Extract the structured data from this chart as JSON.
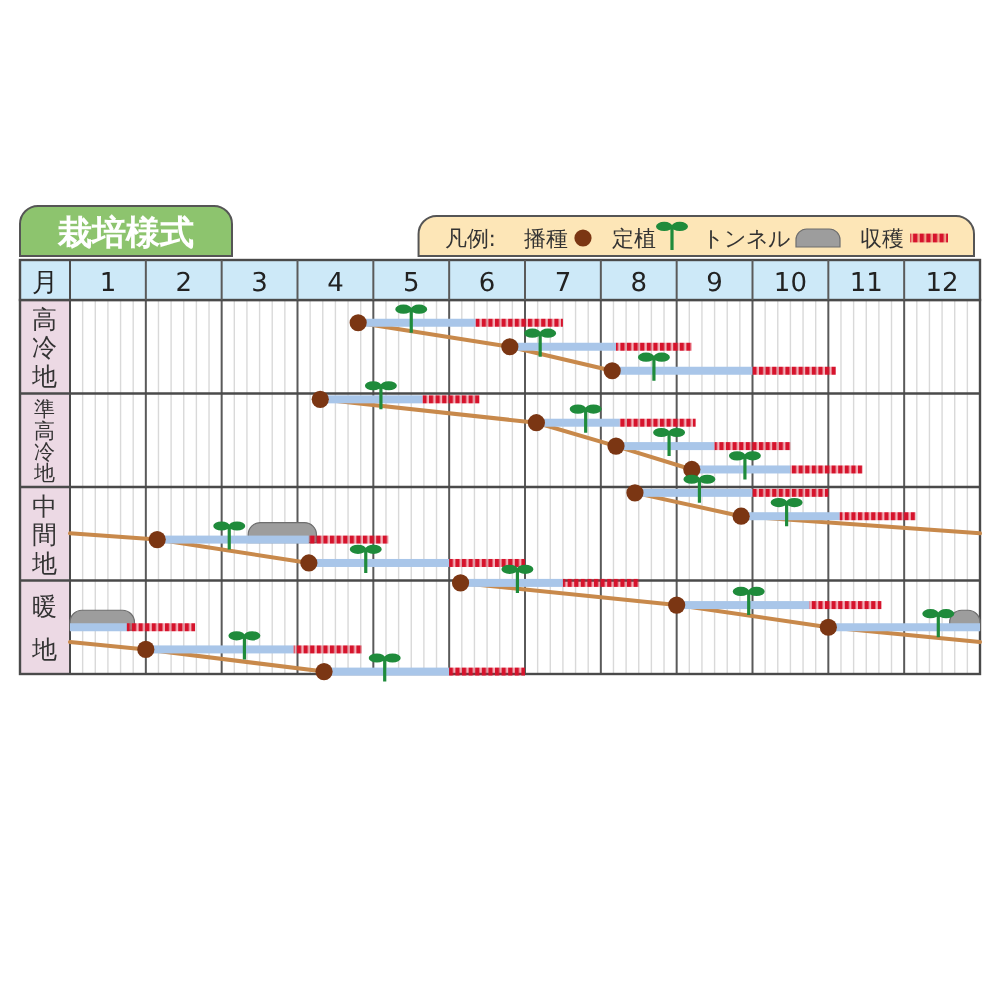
{
  "chart_data": {
    "type": "bar",
    "orientation": "horizontal",
    "title": "栽培様式",
    "xlabel": "月",
    "legend_title": "凡例:",
    "legend": "top right",
    "grid": true,
    "categories": [
      null,
      "高冷地",
      null,
      null,
      null,
      "準高冷地",
      null,
      null,
      null,
      "中間地",
      null,
      null,
      null,
      "暖地",
      null,
      null
    ],
    "xlim": [
      0.5,
      12.5
    ],
    "xticks": [
      1,
      2,
      3,
      4,
      5,
      6,
      7,
      8,
      9,
      10,
      11,
      12
    ],
    "series": [
      {
        "color": "#a9c6e9",
        "base": [
          4.3,
          6.3,
          7.65,
          3.8,
          6.65,
          7.7,
          8.7,
          7.95,
          9.35,
          1.65,
          3.65,
          5.65,
          8.5,
          10.5,
          1.5,
          3.85
        ],
        "values": [
          1.55,
          1.4,
          1.85,
          1.35,
          1.1,
          1.3,
          1.3,
          1.55,
          1.3,
          2.0,
          1.85,
          1.35,
          1.75,
          2.0,
          1.95,
          1.65
        ]
      },
      {
        "color": "#a9c6e9",
        "base": [
          null,
          null,
          null,
          null,
          null,
          null,
          null,
          null,
          null,
          null,
          null,
          null,
          null,
          0.5,
          null,
          null
        ],
        "values": [
          null,
          null,
          null,
          null,
          null,
          null,
          null,
          null,
          null,
          null,
          null,
          null,
          null,
          0.75,
          null,
          null
        ]
      },
      {
        "type": "line",
        "color": "#c8894b",
        "values": [
          4.3,
          6.3,
          7.65,
          null,
          null,
          null,
          null,
          null,
          null,
          null,
          null,
          null,
          null,
          null,
          null,
          null
        ]
      },
      {
        "type": "line",
        "color": "#c8894b",
        "values": [
          null,
          null,
          null,
          3.8,
          6.65,
          7.7,
          8.7,
          null,
          null,
          null,
          null,
          null,
          null,
          null,
          null,
          null
        ]
      },
      {
        "type": "line",
        "color": "#c8894b",
        "values": [
          null,
          null,
          null,
          null,
          null,
          null,
          null,
          7.95,
          9.35,
          1.65,
          3.65,
          null,
          null,
          null,
          null,
          null
        ]
      },
      {
        "type": "line",
        "color": "#c8894b",
        "values": [
          null,
          null,
          null,
          null,
          null,
          null,
          null,
          null,
          null,
          null,
          null,
          5.65,
          8.5,
          10.5,
          1.5,
          3.85
        ]
      },
      {
        "name": "播種",
        "type": "scatter",
        "marker": "circle",
        "color": "#7b3613",
        "values": [
          4.3,
          6.3,
          7.65,
          3.8,
          6.65,
          7.7,
          8.7,
          7.95,
          9.35,
          1.65,
          3.65,
          5.65,
          8.5,
          10.5,
          1.5,
          3.85
        ]
      },
      {
        "name": "定植",
        "type": "scatter",
        "color": "#1f8b3b",
        "values": [
          5.0,
          6.7,
          8.2,
          4.6,
          7.3,
          8.4,
          9.4,
          8.8,
          9.95,
          2.6,
          4.4,
          6.4,
          9.45,
          11.95,
          2.8,
          4.65
        ]
      },
      {
        "name": "トンネル",
        "color": "#9d9d9d",
        "base": [
          null,
          null,
          null,
          null,
          null,
          null,
          null,
          null,
          null,
          2.85,
          null,
          null,
          null,
          12.1,
          null,
          null
        ],
        "values": [
          null,
          null,
          null,
          null,
          null,
          null,
          null,
          null,
          null,
          0.9,
          null,
          null,
          null,
          0.4,
          null,
          null
        ]
      },
      {
        "color": "#9d9d9d",
        "base": [
          null,
          null,
          null,
          null,
          null,
          null,
          null,
          null,
          null,
          null,
          null,
          null,
          null,
          0.5,
          null,
          null
        ],
        "values": [
          null,
          null,
          null,
          null,
          null,
          null,
          null,
          null,
          null,
          null,
          null,
          null,
          null,
          0.85,
          null,
          null
        ]
      },
      {
        "name": "収穫",
        "line_style": "dashed",
        "color": "#d6132c",
        "base": [
          5.85,
          7.7,
          9.5,
          5.15,
          7.75,
          9.0,
          10.0,
          9.5,
          10.65,
          3.65,
          5.5,
          7.0,
          10.25,
          1.25,
          3.45,
          5.5
        ],
        "values": [
          1.15,
          1.0,
          1.1,
          0.75,
          1.0,
          1.0,
          0.95,
          1.0,
          1.0,
          1.05,
          1.0,
          1.0,
          0.95,
          0.9,
          0.9,
          1.0
        ]
      }
    ]
  }
}
